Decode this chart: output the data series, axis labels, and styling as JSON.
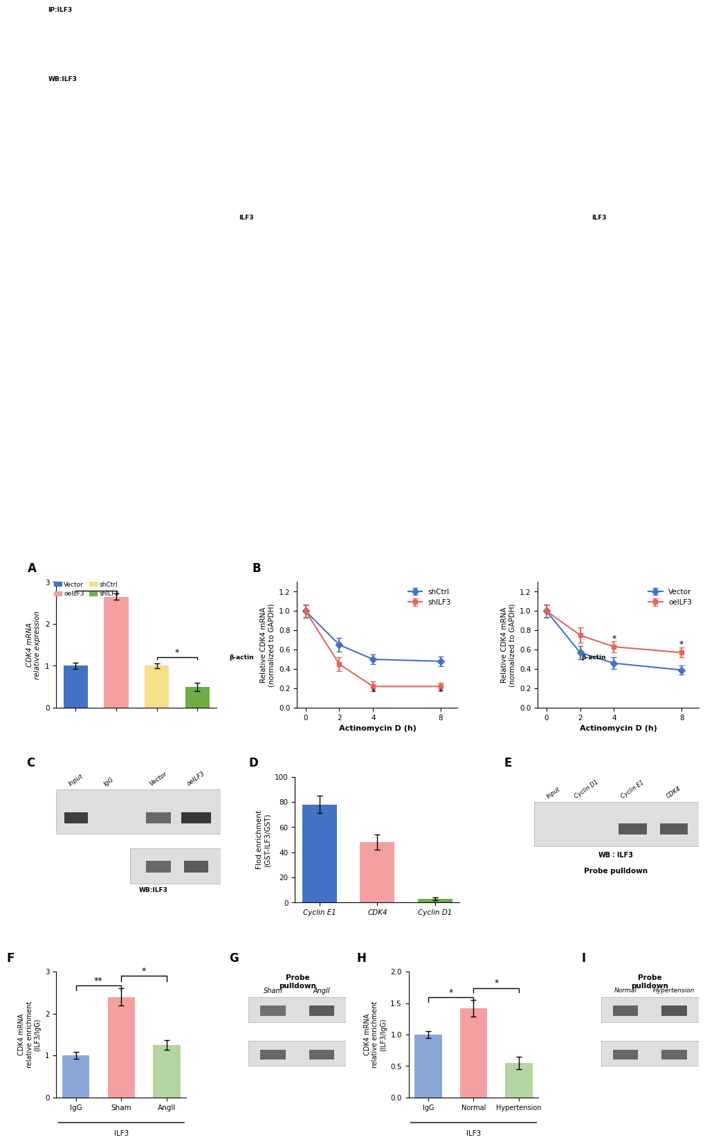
{
  "panel_A": {
    "categories": [
      "Vector",
      "oeILF3",
      "shCtrl",
      "shILF3"
    ],
    "values": [
      1.0,
      2.65,
      1.0,
      0.5
    ],
    "errors": [
      0.07,
      0.08,
      0.06,
      0.1
    ],
    "colors": [
      "#4472C4",
      "#F4A0A0",
      "#F5E08A",
      "#70AD47"
    ],
    "ylabel": "CDK4 mRNA\nrelative expression",
    "ylim": [
      0,
      3
    ],
    "yticks": [
      0,
      1,
      2,
      3
    ]
  },
  "panel_B_left": {
    "x": [
      0,
      2,
      4,
      8
    ],
    "shCtrl": [
      1.0,
      0.65,
      0.5,
      0.48
    ],
    "shCtrl_err": [
      0.07,
      0.07,
      0.05,
      0.05
    ],
    "shILF3": [
      1.0,
      0.45,
      0.22,
      0.22
    ],
    "shILF3_err": [
      0.06,
      0.07,
      0.05,
      0.04
    ],
    "ylabel": "Relative CDK4 mRNA\n(normalized to GAPDH)",
    "xlabel": "Actinomycin D (h)",
    "ylim": [
      0,
      1.3
    ],
    "yticks": [
      0.0,
      0.2,
      0.4,
      0.6,
      0.8,
      1.0,
      1.2
    ]
  },
  "panel_B_right": {
    "x": [
      0,
      2,
      4,
      8
    ],
    "vector": [
      1.0,
      0.57,
      0.46,
      0.39
    ],
    "vector_err": [
      0.07,
      0.07,
      0.06,
      0.05
    ],
    "oeILF3": [
      1.0,
      0.75,
      0.63,
      0.57
    ],
    "oeILF3_err": [
      0.06,
      0.08,
      0.06,
      0.05
    ],
    "ylabel": "Relative CDK4 mRNA\n(normalized to GAPDH)",
    "xlabel": "Actinomycin D (h)",
    "ylim": [
      0,
      1.3
    ],
    "yticks": [
      0.0,
      0.2,
      0.4,
      0.6,
      0.8,
      1.0,
      1.2
    ]
  },
  "panel_D": {
    "categories": [
      "Cyclin E1",
      "CDK4",
      "Cyclin D1"
    ],
    "values": [
      78,
      48,
      3
    ],
    "errors": [
      7,
      6,
      1
    ],
    "colors": [
      "#4472C4",
      "#F4A0A0",
      "#70AD47"
    ],
    "ylabel": "Flod enrichment\n(GST-ILF3/GST)",
    "ylim": [
      0,
      100
    ],
    "yticks": [
      0,
      20,
      40,
      60,
      80,
      100
    ]
  },
  "panel_F": {
    "categories": [
      "IgG",
      "Sham",
      "AngII"
    ],
    "values": [
      1.0,
      2.4,
      1.25
    ],
    "errors": [
      0.08,
      0.2,
      0.12
    ],
    "colors": [
      "#8BA7D5",
      "#F4A0A0",
      "#B5D5A0"
    ],
    "ylabel": "CDK4 mRNA\nrelative enrichment\n(ILF3/IgG)",
    "ylim": [
      0,
      3
    ],
    "yticks": [
      0,
      1,
      2,
      3
    ],
    "group_label": "ILF3"
  },
  "panel_H": {
    "categories": [
      "IgG",
      "Normal",
      "Hypertension"
    ],
    "values": [
      1.0,
      1.42,
      0.55
    ],
    "errors": [
      0.06,
      0.13,
      0.1
    ],
    "colors": [
      "#8BA7D5",
      "#F4A0A0",
      "#B5D5A0"
    ],
    "ylabel": "CDK4 mRNA\nrelative enrichment\n(ILF3/IgG)",
    "ylim": [
      0,
      2.0
    ],
    "yticks": [
      0.0,
      0.5,
      1.0,
      1.5,
      2.0
    ],
    "group_label": "ILF3"
  },
  "colors": {
    "blue": "#4472C4",
    "red": "#E8635A",
    "light_red": "#F4A0A0",
    "yellow": "#F5E08A",
    "green": "#70AD47",
    "light_blue": "#8BA7D5",
    "light_green": "#B5D5A0"
  }
}
